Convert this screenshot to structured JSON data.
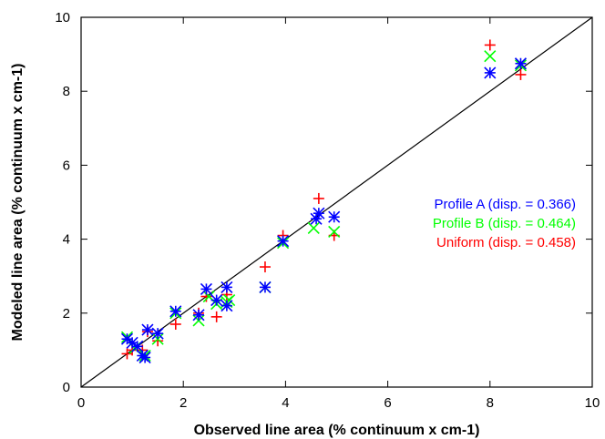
{
  "chart_data": {
    "type": "scatter",
    "title": "",
    "xlabel": "Observed line area (% continuum x cm-1)",
    "ylabel": "Modeled line area (% continuum x cm-1)",
    "xlim": [
      0,
      10
    ],
    "ylim": [
      0,
      10
    ],
    "xticks": [
      0,
      2,
      4,
      6,
      8,
      10
    ],
    "yticks": [
      0,
      2,
      4,
      6,
      8,
      10
    ],
    "xtick_labels": [
      "0",
      "2",
      "4",
      "6",
      "8",
      "10"
    ],
    "ytick_labels": [
      "0",
      "2",
      "4",
      "6",
      "8",
      "10"
    ],
    "grid": false,
    "legend_position": "right",
    "reference_line": "y = x",
    "series": [
      {
        "name": "Profile A (disp. = 0.366)",
        "color": "#0000ff",
        "marker": "asterisk",
        "x": [
          0.9,
          1.0,
          1.1,
          1.2,
          1.25,
          1.3,
          1.5,
          1.85,
          2.3,
          2.45,
          2.65,
          2.85,
          2.85,
          3.6,
          3.95,
          4.6,
          4.65,
          4.95,
          8.0,
          8.6
        ],
        "y": [
          1.3,
          1.2,
          1.1,
          0.85,
          0.8,
          1.55,
          1.45,
          2.05,
          1.95,
          2.65,
          2.35,
          2.2,
          2.7,
          2.7,
          3.95,
          4.55,
          4.7,
          4.6,
          8.5,
          8.75
        ]
      },
      {
        "name": "Profile B (disp. = 0.464)",
        "color": "#00ff00",
        "marker": "x",
        "x": [
          0.9,
          1.05,
          1.25,
          1.5,
          1.85,
          2.3,
          2.5,
          2.65,
          2.85,
          2.9,
          3.6,
          3.95,
          4.55,
          4.95,
          8.0,
          8.6
        ],
        "y": [
          1.35,
          1.05,
          0.85,
          1.3,
          2.0,
          1.8,
          2.45,
          2.25,
          2.3,
          2.35,
          2.7,
          3.9,
          4.3,
          4.2,
          8.95,
          8.7
        ]
      },
      {
        "name": "Uniform (disp. = 0.458)",
        "color": "#ff0000",
        "marker": "plus",
        "x": [
          0.9,
          1.0,
          1.2,
          1.3,
          1.5,
          1.85,
          2.3,
          2.45,
          2.65,
          2.85,
          3.6,
          3.95,
          4.65,
          4.95,
          8.0,
          8.6
        ],
        "y": [
          0.9,
          1.0,
          1.0,
          1.5,
          1.25,
          1.7,
          2.0,
          2.45,
          1.9,
          2.5,
          3.25,
          4.1,
          5.1,
          4.1,
          9.25,
          8.45
        ]
      }
    ]
  }
}
